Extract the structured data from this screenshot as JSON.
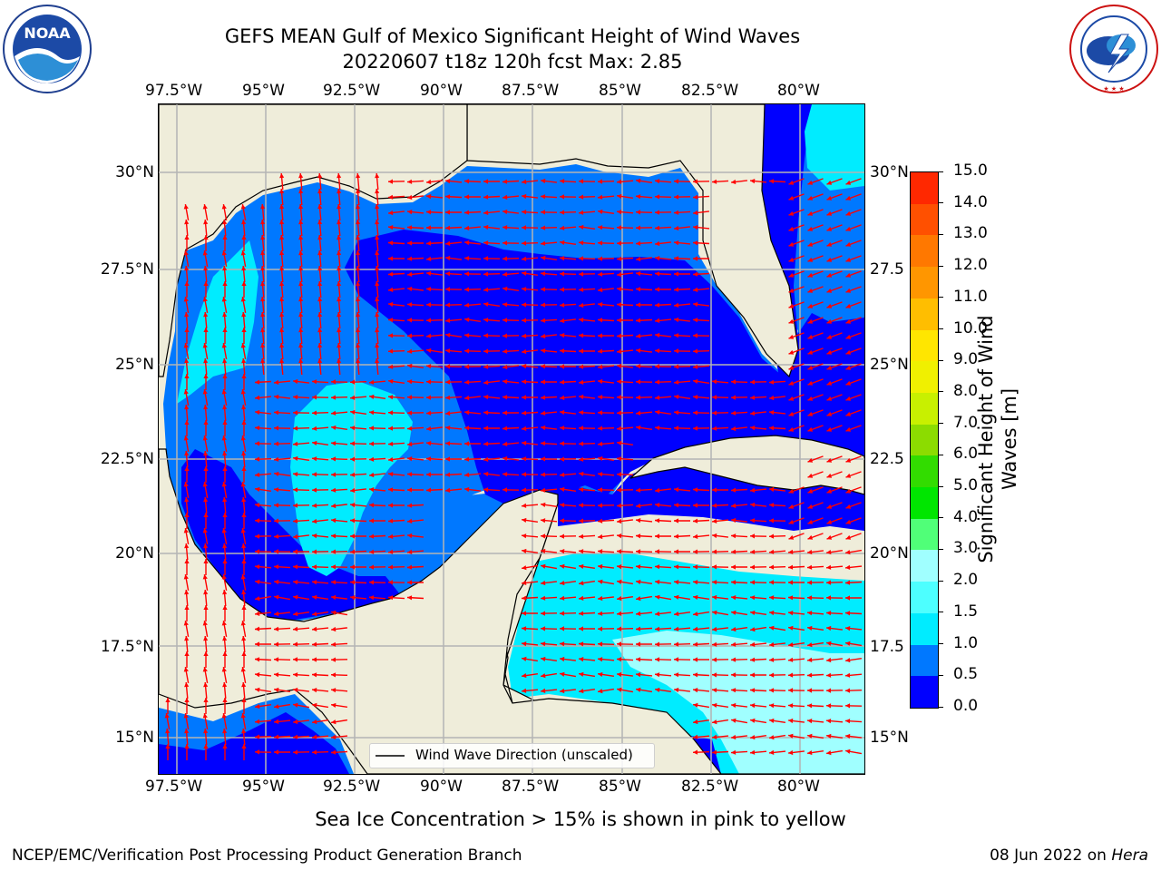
{
  "title_line1": "GEFS MEAN Gulf of Mexico Significant Height of Wind Waves",
  "title_line2": "20220607 t18z 120h fcst   Max: 2.85",
  "lon_labels": [
    "97.5°W",
    "95°W",
    "92.5°W",
    "90°W",
    "87.5°W",
    "85°W",
    "82.5°W",
    "80°W"
  ],
  "lat_labels_left": [
    "30°N",
    "27.5°N",
    "25°N",
    "22.5°N",
    "20°N",
    "17.5°N",
    "15°N"
  ],
  "lat_labels_right": [
    "30°N",
    "27.5",
    "25°N",
    "22.5",
    "20°N",
    "17.5",
    "15°N"
  ],
  "legend_label": "Wind Wave Direction (unscaled)",
  "colorbar": {
    "label_line1": "Significant Height of Wind",
    "label_line2": "Waves [m]",
    "ticks": [
      "0.0",
      "0.5",
      "1.0",
      "1.5",
      "2.0",
      "3.0",
      "4.0",
      "5.0",
      "6.0",
      "7.0",
      "8.0",
      "9.0",
      "10.0",
      "11.0",
      "12.0",
      "13.0",
      "14.0",
      "15.0"
    ],
    "colors": [
      "#0000ff",
      "#0078ff",
      "#00ecff",
      "#4dffff",
      "#a0ffff",
      "#50ff78",
      "#00e600",
      "#32dc00",
      "#8cdc00",
      "#c8f000",
      "#f0f000",
      "#ffe600",
      "#ffbe00",
      "#ff9600",
      "#ff7800",
      "#ff5000",
      "#ff2800",
      "#ff0000"
    ]
  },
  "sea_ice_note": "Sea Ice Concentration > 15% is shown in pink to yellow",
  "footer_left": "NCEP/EMC/Verification Post Processing Product Generation Branch",
  "footer_date": "08 Jun 2022 on ",
  "footer_host": "Hera",
  "logos": {
    "noaa_text": "NOAA",
    "nws_text": "NATIONAL WEATHER SERVICE"
  },
  "colors": {
    "land": "#efedda",
    "arrow": "#ff0000",
    "grid": "#b4b4b4"
  }
}
